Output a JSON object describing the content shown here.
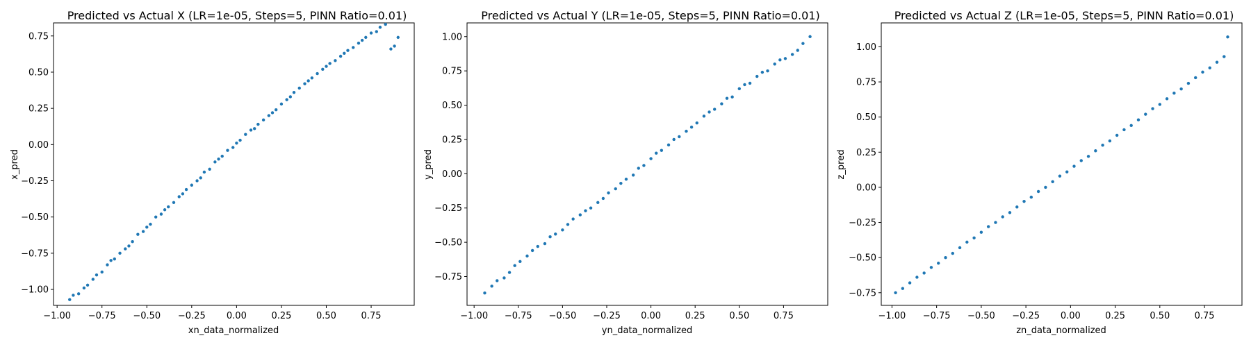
{
  "chart_data": [
    {
      "type": "scatter",
      "title": "Predicted vs Actual X (LR=1e-05, Steps=5, PINN Ratio=0.01)",
      "xlabel": "xn_data_normalized",
      "ylabel": "x_pred",
      "xlim": [
        -1.02,
        0.99
      ],
      "ylim": [
        -1.11,
        0.84
      ],
      "xticks": [
        -1.0,
        -0.75,
        -0.5,
        -0.25,
        0.0,
        0.25,
        0.5,
        0.75
      ],
      "xtick_labels": [
        "−1.00",
        "−0.75",
        "−0.50",
        "−0.25",
        "0.00",
        "0.25",
        "0.50",
        "0.75"
      ],
      "yticks": [
        -1.0,
        -0.75,
        -0.5,
        -0.25,
        0.0,
        0.25,
        0.5,
        0.75
      ],
      "ytick_labels": [
        "−1.00",
        "−0.75",
        "−0.50",
        "−0.25",
        "0.00",
        "0.25",
        "0.50",
        "0.75"
      ],
      "grid": false,
      "color": "#1f77b4",
      "series": [
        {
          "x": [
            -0.93,
            -0.91,
            -0.88,
            -0.85,
            -0.83,
            -0.8,
            -0.78,
            -0.75,
            -0.72,
            -0.7,
            -0.68,
            -0.65,
            -0.62,
            -0.6,
            -0.58,
            -0.55,
            -0.52,
            -0.5,
            -0.48,
            -0.45,
            -0.42,
            -0.4,
            -0.38,
            -0.35,
            -0.32,
            -0.3,
            -0.28,
            -0.25,
            -0.22,
            -0.2,
            -0.18,
            -0.15,
            -0.12,
            -0.1,
            -0.08,
            -0.05,
            -0.02,
            0.0,
            0.02,
            0.05,
            0.08,
            0.1,
            0.12,
            0.15,
            0.18,
            0.2,
            0.22,
            0.25,
            0.28,
            0.3,
            0.32,
            0.35,
            0.38,
            0.4,
            0.42,
            0.45,
            0.48,
            0.5,
            0.52,
            0.55,
            0.58,
            0.6,
            0.62,
            0.65,
            0.68,
            0.7,
            0.72,
            0.75,
            0.78,
            0.8,
            0.83,
            0.86,
            0.88,
            0.9
          ],
          "y": [
            -1.07,
            -1.04,
            -1.03,
            -0.99,
            -0.97,
            -0.93,
            -0.9,
            -0.88,
            -0.83,
            -0.8,
            -0.79,
            -0.75,
            -0.72,
            -0.7,
            -0.67,
            -0.62,
            -0.6,
            -0.57,
            -0.55,
            -0.5,
            -0.48,
            -0.45,
            -0.43,
            -0.4,
            -0.36,
            -0.34,
            -0.31,
            -0.28,
            -0.25,
            -0.23,
            -0.19,
            -0.17,
            -0.12,
            -0.1,
            -0.08,
            -0.04,
            -0.02,
            0.01,
            0.03,
            0.07,
            0.1,
            0.11,
            0.14,
            0.17,
            0.2,
            0.22,
            0.24,
            0.28,
            0.31,
            0.33,
            0.36,
            0.39,
            0.42,
            0.44,
            0.46,
            0.49,
            0.52,
            0.54,
            0.56,
            0.58,
            0.61,
            0.63,
            0.65,
            0.67,
            0.7,
            0.72,
            0.74,
            0.77,
            0.78,
            0.81,
            0.83,
            0.66,
            0.68,
            0.74
          ]
        }
      ]
    },
    {
      "type": "scatter",
      "title": "Predicted vs Actual Y (LR=1e-05, Steps=5, PINN Ratio=0.01)",
      "xlabel": "yn_data_normalized",
      "ylabel": "y_pred",
      "xlim": [
        -1.04,
        1.0
      ],
      "ylim": [
        -0.96,
        1.1
      ],
      "xticks": [
        -1.0,
        -0.75,
        -0.5,
        -0.25,
        0.0,
        0.25,
        0.5,
        0.75
      ],
      "xtick_labels": [
        "−1.00",
        "−0.75",
        "−0.50",
        "−0.25",
        "0.00",
        "0.25",
        "0.50",
        "0.75"
      ],
      "yticks": [
        -0.75,
        -0.5,
        -0.25,
        0.0,
        0.25,
        0.5,
        0.75,
        1.0
      ],
      "ytick_labels": [
        "−0.75",
        "−0.50",
        "−0.25",
        "0.00",
        "0.25",
        "0.50",
        "0.75",
        "1.00"
      ],
      "grid": false,
      "color": "#1f77b4",
      "series": [
        {
          "x": [
            -0.94,
            -0.9,
            -0.87,
            -0.83,
            -0.8,
            -0.77,
            -0.74,
            -0.7,
            -0.67,
            -0.64,
            -0.6,
            -0.57,
            -0.54,
            -0.5,
            -0.47,
            -0.44,
            -0.4,
            -0.37,
            -0.34,
            -0.3,
            -0.27,
            -0.24,
            -0.2,
            -0.17,
            -0.14,
            -0.1,
            -0.07,
            -0.04,
            0.0,
            0.03,
            0.06,
            0.1,
            0.13,
            0.16,
            0.2,
            0.23,
            0.26,
            0.3,
            0.33,
            0.36,
            0.4,
            0.43,
            0.46,
            0.5,
            0.53,
            0.56,
            0.6,
            0.63,
            0.66,
            0.7,
            0.73,
            0.76,
            0.8,
            0.83,
            0.86,
            0.9
          ],
          "y": [
            -0.87,
            -0.82,
            -0.78,
            -0.76,
            -0.72,
            -0.67,
            -0.64,
            -0.6,
            -0.56,
            -0.53,
            -0.51,
            -0.46,
            -0.44,
            -0.41,
            -0.37,
            -0.33,
            -0.3,
            -0.27,
            -0.25,
            -0.21,
            -0.18,
            -0.14,
            -0.11,
            -0.07,
            -0.04,
            -0.01,
            0.04,
            0.06,
            0.11,
            0.15,
            0.17,
            0.21,
            0.25,
            0.27,
            0.31,
            0.34,
            0.37,
            0.42,
            0.45,
            0.47,
            0.51,
            0.55,
            0.56,
            0.62,
            0.65,
            0.66,
            0.71,
            0.74,
            0.75,
            0.8,
            0.83,
            0.84,
            0.87,
            0.9,
            0.95,
            1.0
          ]
        }
      ]
    },
    {
      "type": "scatter",
      "title": "Predicted vs Actual Z (LR=1e-05, Steps=5, PINN Ratio=0.01)",
      "xlabel": "zn_data_normalized",
      "ylabel": "z_pred",
      "xlim": [
        -1.06,
        0.96
      ],
      "ylim": [
        -0.84,
        1.17
      ],
      "xticks": [
        -1.0,
        -0.75,
        -0.5,
        -0.25,
        0.0,
        0.25,
        0.5,
        0.75
      ],
      "xtick_labels": [
        "−1.00",
        "−0.75",
        "−0.50",
        "−0.25",
        "0.00",
        "0.25",
        "0.50",
        "0.75"
      ],
      "yticks": [
        -0.75,
        -0.5,
        -0.25,
        0.0,
        0.25,
        0.5,
        0.75,
        1.0
      ],
      "ytick_labels": [
        "−0.75",
        "−0.50",
        "−0.25",
        "0.00",
        "0.25",
        "0.50",
        "0.75",
        "1.00"
      ],
      "grid": false,
      "color": "#1f77b4",
      "series": [
        {
          "x": [
            -0.98,
            -0.94,
            -0.9,
            -0.86,
            -0.82,
            -0.78,
            -0.74,
            -0.7,
            -0.66,
            -0.62,
            -0.58,
            -0.54,
            -0.5,
            -0.46,
            -0.42,
            -0.38,
            -0.34,
            -0.3,
            -0.26,
            -0.22,
            -0.18,
            -0.14,
            -0.1,
            -0.06,
            -0.02,
            0.02,
            0.06,
            0.1,
            0.14,
            0.18,
            0.22,
            0.26,
            0.3,
            0.34,
            0.38,
            0.42,
            0.46,
            0.5,
            0.54,
            0.58,
            0.62,
            0.66,
            0.7,
            0.74,
            0.78,
            0.82,
            0.86,
            0.88
          ],
          "y": [
            -0.75,
            -0.72,
            -0.68,
            -0.64,
            -0.61,
            -0.57,
            -0.54,
            -0.5,
            -0.47,
            -0.43,
            -0.39,
            -0.36,
            -0.32,
            -0.28,
            -0.25,
            -0.21,
            -0.18,
            -0.14,
            -0.1,
            -0.07,
            -0.03,
            0.0,
            0.04,
            0.08,
            0.11,
            0.15,
            0.19,
            0.22,
            0.26,
            0.3,
            0.33,
            0.37,
            0.41,
            0.44,
            0.48,
            0.52,
            0.56,
            0.59,
            0.63,
            0.67,
            0.7,
            0.74,
            0.78,
            0.82,
            0.85,
            0.89,
            0.93,
            1.07
          ]
        }
      ]
    }
  ]
}
